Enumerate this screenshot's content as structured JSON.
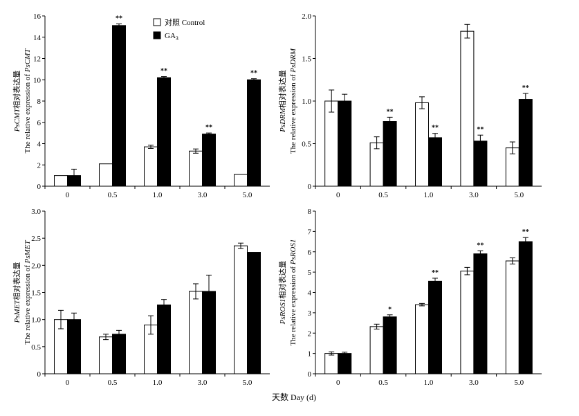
{
  "legend": {
    "control_label": "对照 Control",
    "ga_label": "GA",
    "ga_sub": "3",
    "control_color": "#ffffff",
    "ga_color": "#000000"
  },
  "shared_xlabel": "天数 Day (d)",
  "chart_data": [
    {
      "type": "bar",
      "ylabel_line1_italic": "PsCMT",
      "ylabel_line1_rest": "相对表达量",
      "ylabel_line2_plain": "The relative expression of ",
      "ylabel_line2_italic": "PsCMT",
      "categories": [
        "0",
        "0.5",
        "1.0",
        "3.0",
        "5.0"
      ],
      "ylim": [
        0,
        16
      ],
      "yticks": [
        0,
        2,
        4,
        6,
        8,
        10,
        12,
        14,
        16
      ],
      "ytick_labels": [
        "0",
        "2",
        "4",
        "6",
        "8",
        "10",
        "12",
        "14",
        "16"
      ],
      "series": [
        {
          "name": "对照 Control",
          "values": [
            1.0,
            2.1,
            3.7,
            3.3,
            1.1
          ],
          "errors": [
            0.0,
            0.0,
            0.15,
            0.2,
            0.0
          ],
          "sig": [
            "",
            "",
            "",
            "",
            ""
          ]
        },
        {
          "name": "GA3",
          "values": [
            1.0,
            15.1,
            10.2,
            4.9,
            10.0
          ],
          "errors": [
            0.6,
            0.15,
            0.1,
            0.1,
            0.1
          ],
          "sig": [
            "",
            "**",
            "**",
            "**",
            "**"
          ]
        }
      ]
    },
    {
      "type": "bar",
      "ylabel_line1_italic": "PsDRM",
      "ylabel_line1_rest": "相对表达量",
      "ylabel_line2_plain": "The relative expression of ",
      "ylabel_line2_italic": "PsDRM",
      "categories": [
        "0",
        "0.5",
        "1.0",
        "3.0",
        "5.0"
      ],
      "ylim": [
        0,
        2.0
      ],
      "yticks": [
        0,
        0.5,
        1.0,
        1.5,
        2.0
      ],
      "ytick_labels": [
        "0",
        "0.5",
        "1.0",
        "1.5",
        "2.0"
      ],
      "series": [
        {
          "name": "对照 Control",
          "values": [
            1.0,
            0.51,
            0.98,
            1.82,
            0.45
          ],
          "errors": [
            0.13,
            0.07,
            0.07,
            0.08,
            0.07
          ],
          "sig": [
            "",
            "",
            "",
            "",
            ""
          ]
        },
        {
          "name": "GA3",
          "values": [
            1.0,
            0.76,
            0.57,
            0.53,
            1.02
          ],
          "errors": [
            0.08,
            0.05,
            0.05,
            0.07,
            0.07
          ],
          "sig": [
            "",
            "**",
            "**",
            "**",
            "**"
          ]
        }
      ]
    },
    {
      "type": "bar",
      "ylabel_line1_italic": "PsMET",
      "ylabel_line1_rest": "相对表达量",
      "ylabel_line2_plain": "The relative expression of ",
      "ylabel_line2_italic": "PsMET",
      "categories": [
        "0",
        "0.5",
        "1.0",
        "3.0",
        "5.0"
      ],
      "ylim": [
        0,
        3.0
      ],
      "yticks": [
        0,
        0.5,
        1.0,
        1.5,
        2.0,
        2.5,
        3.0
      ],
      "ytick_labels": [
        "0",
        "0.5",
        "1.0",
        "1.5",
        "2.0",
        "2.5",
        "3.0"
      ],
      "series": [
        {
          "name": "对照 Control",
          "values": [
            1.0,
            0.68,
            0.9,
            1.52,
            2.36
          ],
          "errors": [
            0.17,
            0.05,
            0.17,
            0.14,
            0.05
          ],
          "sig": [
            "",
            "",
            "",
            "",
            ""
          ]
        },
        {
          "name": "GA3",
          "values": [
            1.0,
            0.73,
            1.27,
            1.52,
            2.24
          ],
          "errors": [
            0.12,
            0.07,
            0.1,
            0.3,
            0.0
          ],
          "sig": [
            "",
            "",
            "",
            "",
            ""
          ]
        }
      ]
    },
    {
      "type": "bar",
      "ylabel_line1_italic": "PsROS1",
      "ylabel_line1_rest": "相对表达量",
      "ylabel_line2_plain": "The relative expression of ",
      "ylabel_line2_italic": "PsROS1",
      "categories": [
        "0",
        "0.5",
        "1.0",
        "3.0",
        "5.0"
      ],
      "ylim": [
        0,
        8
      ],
      "yticks": [
        0,
        1,
        2,
        3,
        4,
        5,
        6,
        7,
        8
      ],
      "ytick_labels": [
        "0",
        "1",
        "2",
        "3",
        "4",
        "5",
        "6",
        "7",
        "8"
      ],
      "series": [
        {
          "name": "对照 Control",
          "values": [
            1.0,
            2.32,
            3.4,
            5.05,
            5.55
          ],
          "errors": [
            0.08,
            0.12,
            0.06,
            0.18,
            0.15
          ],
          "sig": [
            "",
            "",
            "",
            "",
            ""
          ]
        },
        {
          "name": "GA3",
          "values": [
            1.0,
            2.8,
            4.55,
            5.9,
            6.5
          ],
          "errors": [
            0.06,
            0.1,
            0.15,
            0.15,
            0.2
          ],
          "sig": [
            "",
            "*",
            "**",
            "**",
            "**"
          ]
        }
      ]
    }
  ]
}
